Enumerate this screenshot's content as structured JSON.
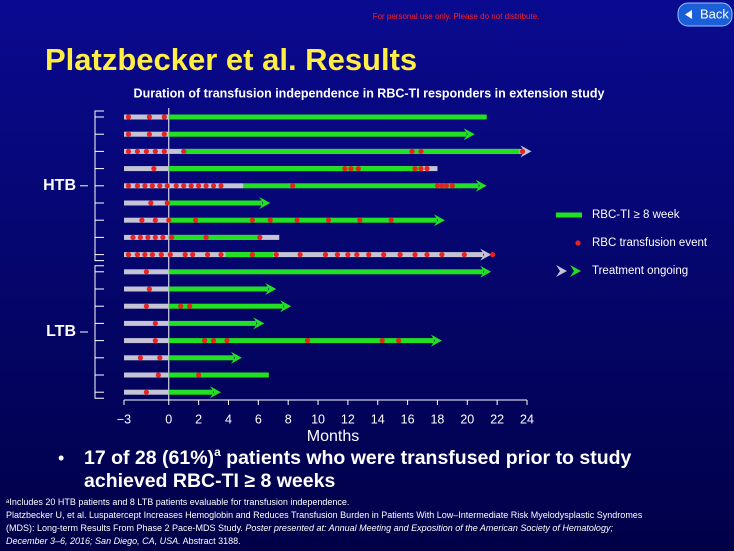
{
  "slide": {
    "notice": "For personal use only. Please do not distribute.",
    "back": "Back",
    "title": "Platzbecker et al. Results",
    "bullet": [
      "17 of 28 (61%)",
      "a",
      " patients who were transfused prior to study",
      "achieved RBC-TI ≥ 8 weeks"
    ],
    "footnote": [
      "a",
      "Includes 20 HTB patients and 8 LTB patients evaluable for transfusion independence."
    ],
    "reference": [
      [
        "Platzbecker U, et al. Luspatercept Increases Hemoglobin and Reduces Transfusion Burden in Patients With Low–Intermediate Risk Myelodysplastic Syndromes"
      ],
      [
        "(MDS): Long-term Results From Phase 2 Pace-MDS Study. ",
        "Poster presented at: Annual Meeting and Exposition of the American Society of Hematology;"
      ],
      [
        "December 3–6, 2016; San Diego, CA, USA.",
        " Abstract 3188."
      ]
    ]
  },
  "chart_data": {
    "type": "swimmer",
    "title": "Duration of transfusion independence in RBC-TI responders in extension study",
    "x_label": "Months",
    "xlim": [
      -3,
      24
    ],
    "xticks": [
      {
        "value": -3,
        "label": "−3"
      },
      0,
      2,
      4,
      6,
      8,
      10,
      12,
      14,
      16,
      18,
      20,
      22,
      24
    ],
    "colors": {
      "gray": "#c4c4d6",
      "green": "#22e022",
      "event": "#e8221e"
    },
    "legend": [
      "RBC-TI ≥ 8 week",
      "RBC transfusion event",
      "Treatment ongoing"
    ],
    "groups": [
      {
        "name": "HTB",
        "rows": [
          {
            "gray": [
              -3,
              0
            ],
            "green": [
              0,
              21.3
            ],
            "ongoing": false,
            "events": [
              -2.7,
              -1.3,
              -0.3
            ]
          },
          {
            "gray": [
              -3,
              0
            ],
            "green": [
              0,
              20.5
            ],
            "ongoing": true,
            "events": [
              -2.7,
              -1.3,
              -0.3
            ]
          },
          {
            "gray": [
              -3,
              24.3
            ],
            "green": [
              1,
              23.5
            ],
            "ongoing": true,
            "events": [
              -2.7,
              -2.1,
              -1.5,
              -0.9,
              -0.3,
              1,
              16.3,
              16.9,
              23.7
            ]
          },
          {
            "gray": [
              -3,
              18
            ],
            "green": [
              0,
              17
            ],
            "ongoing": false,
            "events": [
              -1,
              11.8,
              12.2,
              12.7,
              16.5,
              16.9,
              17.3
            ]
          },
          {
            "gray": [
              -3,
              5
            ],
            "green": [
              5,
              21.3
            ],
            "ongoing": true,
            "events": [
              -2.7,
              -2.1,
              -1.6,
              -1.1,
              -0.6,
              -0.1,
              0.5,
              1,
              1.5,
              2,
              2.5,
              3,
              3.5,
              8.3,
              18,
              18.3,
              18.6,
              19
            ]
          },
          {
            "gray": [
              -3,
              0
            ],
            "green": [
              0,
              6.8
            ],
            "ongoing": true,
            "events": [
              -1.2,
              -0.1
            ]
          },
          {
            "gray": [
              -3,
              0
            ],
            "green": [
              0,
              18.5
            ],
            "ongoing": true,
            "events": [
              -1.8,
              -0.9,
              0,
              1.8,
              5.6,
              6.8,
              8.6,
              10.7,
              12.8,
              14.9
            ]
          },
          {
            "gray": [
              -3,
              7.4
            ],
            "green": [
              0,
              6
            ],
            "ongoing": false,
            "events": [
              -2.4,
              -1.9,
              -1.4,
              -0.9,
              -0.4,
              0.2,
              2.5,
              6.1
            ]
          },
          {
            "gray": [
              -3,
              21.6
            ],
            "green": [
              3.8,
              7
            ],
            "ongoing": true,
            "events": [
              -2.7,
              -2.1,
              -1.6,
              -1.1,
              -0.5,
              0.1,
              1.1,
              1.6,
              2.6,
              3.5,
              5.6,
              7.2,
              8.8,
              10.5,
              11.3,
              12,
              12.6,
              13.4,
              14.4,
              15.5,
              16.5,
              17.3,
              18.3,
              19.8,
              21.7
            ]
          }
        ]
      },
      {
        "name": "LTB",
        "rows": [
          {
            "gray": [
              -3,
              0
            ],
            "green": [
              0,
              21.6
            ],
            "ongoing": true,
            "events": [
              -1.5
            ]
          },
          {
            "gray": [
              -3,
              0
            ],
            "green": [
              0,
              7.2
            ],
            "ongoing": true,
            "events": [
              -1.3
            ]
          },
          {
            "gray": [
              -3,
              0
            ],
            "green": [
              0,
              8.2
            ],
            "ongoing": true,
            "events": [
              -1.5,
              0.8,
              1.4
            ]
          },
          {
            "gray": [
              -3,
              0
            ],
            "green": [
              0,
              6.4
            ],
            "ongoing": true,
            "events": [
              -0.9
            ]
          },
          {
            "gray": [
              -3,
              0
            ],
            "green": [
              0,
              18.3
            ],
            "ongoing": true,
            "events": [
              -0.9,
              2.4,
              3,
              3.9,
              9.3,
              14.3,
              15.4
            ]
          },
          {
            "gray": [
              -3,
              0
            ],
            "green": [
              0,
              4.9
            ],
            "ongoing": true,
            "events": [
              -1.9,
              -0.6
            ]
          },
          {
            "gray": [
              -3,
              0
            ],
            "green": [
              0,
              6.7
            ],
            "ongoing": false,
            "events": [
              -0.7,
              2
            ]
          },
          {
            "gray": [
              -3,
              0
            ],
            "green": [
              0,
              3.5
            ],
            "ongoing": true,
            "events": [
              -1.5
            ]
          }
        ]
      }
    ]
  }
}
